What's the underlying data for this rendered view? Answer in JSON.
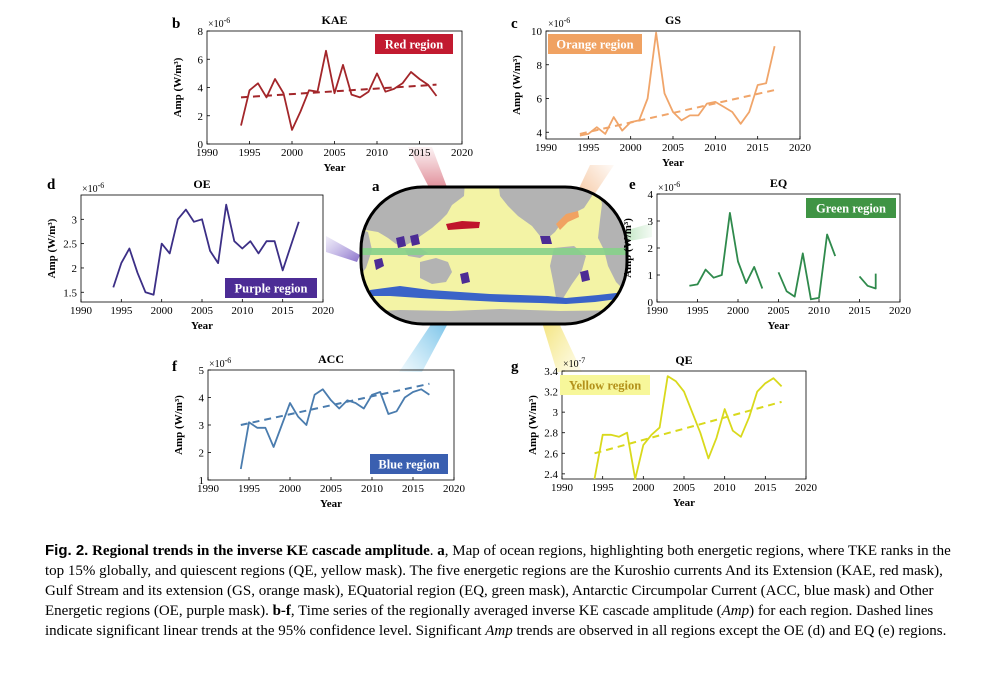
{
  "map": {
    "letter": "a",
    "colors": {
      "ocean": "#f3f3a5",
      "land": "#b3b3b3",
      "frame": "#000000",
      "KAE": "#c0142b",
      "GS": "#f0a262",
      "EQ": "#86d08a",
      "ACC": "#3a63c8",
      "OE": "#4c2c95"
    }
  },
  "caption": {
    "figlabel": "Fig. 2.",
    "title": "Regional trends in the inverse KE cascade amplitude",
    "a_label": "a",
    "a_text": ", Map of ocean regions, highlighting both energetic regions, where TKE ranks in the top 15% globally, and quiescent regions (QE, yellow mask). The five energetic regions are the Kuroshio currents And its Extension (KAE, red mask), Gulf Stream and its extension (GS, orange mask), EQuatorial region (EQ, green mask), Antarctic Circumpolar Current (ACC, blue mask) and Other Energetic regions (OE, purple mask).",
    "bf_label": "b-f",
    "bf_text1": ", Time series of the regionally averaged inverse KE cascade amplitude (",
    "amp": "Amp",
    "bf_text2": ") for each region. Dashed lines indicate significant linear trends at the 95% confidence level. Significant",
    "amp2": "Amp",
    "bf_text3": "trends are observed in all regions except the OE (d) and EQ (e) regions."
  },
  "chart_data": [
    {
      "type": "line",
      "letter": "b",
      "title": "KAE",
      "badge": "Red region",
      "color": "#a3262a",
      "badge_color": "#c21a30",
      "badge_text_color": "#ffffff",
      "exponent_base": "×10",
      "exponent_power": "-6",
      "xlabel": "Year",
      "ylabel": "Amp (W/m³)",
      "xlim": [
        1990,
        2020
      ],
      "ylim": [
        0,
        8
      ],
      "xticks": [
        1990,
        1995,
        2000,
        2005,
        2010,
        2015,
        2020
      ],
      "xtick_labels": [
        "1990",
        "1995",
        "2000",
        "2005",
        "2010",
        "2015",
        "2020"
      ],
      "yticks": [
        0,
        2,
        4,
        6,
        8
      ],
      "ytick_labels": [
        "0",
        "2",
        "4",
        "6",
        "8"
      ],
      "x": [
        1994,
        1995,
        1996,
        1997,
        1998,
        1999,
        2000,
        2001,
        2002,
        2003,
        2004,
        2005,
        2006,
        2007,
        2008,
        2009,
        2010,
        2011,
        2012,
        2013,
        2014,
        2015,
        2016,
        2017
      ],
      "values": [
        1.3,
        3.8,
        4.3,
        3.3,
        4.6,
        3.6,
        1.0,
        2.3,
        3.8,
        3.7,
        6.6,
        3.6,
        5.6,
        3.5,
        3.3,
        3.7,
        5.0,
        3.7,
        3.9,
        4.3,
        5.1,
        4.6,
        4.2,
        3.4
      ],
      "trend": {
        "x": [
          1994,
          2017
        ],
        "y": [
          3.3,
          4.2
        ]
      }
    },
    {
      "type": "line",
      "letter": "c",
      "title": "GS",
      "badge": "Orange region",
      "color": "#f0a56a",
      "badge_color": "#f0a262",
      "badge_text_color": "#ffffff",
      "exponent_base": "×10",
      "exponent_power": "-6",
      "xlabel": "Year",
      "ylabel": "Amp (W/m³)",
      "xlim": [
        1990,
        2020
      ],
      "ylim": [
        3.6,
        10
      ],
      "xticks": [
        1990,
        1995,
        2000,
        2005,
        2010,
        2015,
        2020
      ],
      "xtick_labels": [
        "1990",
        "1995",
        "2000",
        "2005",
        "2010",
        "2015",
        "2020"
      ],
      "yticks": [
        4,
        6,
        8,
        10
      ],
      "ytick_labels": [
        "4",
        "6",
        "8",
        "10"
      ],
      "x": [
        1994,
        1995,
        1996,
        1997,
        1998,
        1999,
        2000,
        2001,
        2002,
        2003,
        2004,
        2005,
        2006,
        2007,
        2008,
        2009,
        2010,
        2011,
        2012,
        2013,
        2014,
        2015,
        2016,
        2017
      ],
      "values": [
        3.8,
        3.9,
        4.3,
        3.9,
        4.9,
        4.1,
        4.6,
        4.7,
        6.0,
        9.9,
        6.3,
        5.2,
        4.7,
        5.0,
        5.0,
        5.7,
        5.8,
        5.5,
        5.2,
        4.5,
        5.2,
        6.8,
        6.9,
        9.1
      ],
      "trend": {
        "x": [
          1994,
          2017
        ],
        "y": [
          3.9,
          6.5
        ]
      }
    },
    {
      "type": "line",
      "letter": "d",
      "title": "OE",
      "badge": "Purple region",
      "color": "#3c2f86",
      "badge_color": "#4c2c95",
      "badge_text_color": "#ffffff",
      "exponent_base": "×10",
      "exponent_power": "-6",
      "xlabel": "Year",
      "ylabel": "Amp (W/m³)",
      "xlim": [
        1990,
        2020
      ],
      "ylim": [
        1.3,
        3.5
      ],
      "xticks": [
        1990,
        1995,
        2000,
        2005,
        2010,
        2015,
        2020
      ],
      "xtick_labels": [
        "1990",
        "1995",
        "2000",
        "2005",
        "2010",
        "2015",
        "2020"
      ],
      "yticks": [
        1.5,
        2,
        2.5,
        3
      ],
      "ytick_labels": [
        "1.5",
        "2",
        "2.5",
        "3"
      ],
      "x": [
        1994,
        1995,
        1996,
        1997,
        1998,
        1999,
        2000,
        2001,
        2002,
        2003,
        2004,
        2005,
        2006,
        2007,
        2008,
        2009,
        2010,
        2011,
        2012,
        2013,
        2014,
        2015,
        2016,
        2017
      ],
      "values": [
        1.6,
        2.1,
        2.4,
        1.9,
        1.5,
        1.45,
        2.5,
        2.3,
        3.0,
        3.2,
        2.95,
        3.0,
        2.35,
        2.1,
        3.3,
        2.55,
        2.4,
        2.55,
        2.3,
        2.55,
        2.55,
        1.95,
        2.45,
        2.95
      ],
      "trend": null
    },
    {
      "type": "line",
      "letter": "e",
      "title": "EQ",
      "badge": "Green region",
      "color": "#2f8a4c",
      "badge_color": "#3f9444",
      "badge_text_color": "#ffffff",
      "exponent_base": "×10",
      "exponent_power": "-6",
      "xlabel": "Year",
      "ylabel": "Amp (W/m³)",
      "xlim": [
        1990,
        2020
      ],
      "ylim": [
        0,
        4
      ],
      "xticks": [
        1990,
        1995,
        2000,
        2005,
        2010,
        2015,
        2020
      ],
      "xtick_labels": [
        "1990",
        "1995",
        "2000",
        "2005",
        "2010",
        "2015",
        "2020"
      ],
      "yticks": [
        0,
        1,
        2,
        3,
        4
      ],
      "ytick_labels": [
        "0",
        "1",
        "2",
        "3",
        "4"
      ],
      "x": [
        1994,
        1995,
        1996,
        1997,
        1998,
        1999,
        2000,
        2001,
        2002,
        2003,
        2004,
        2005,
        2006,
        2007,
        2008,
        2009,
        2010,
        2011,
        2012,
        2013,
        2014,
        2015,
        2016,
        2017
      ],
      "values": [
        0.6,
        0.65,
        1.2,
        0.9,
        1.0,
        3.3,
        1.5,
        0.7,
        1.3,
        0.5,
        null,
        1.1,
        0.4,
        0.2,
        1.8,
        0.1,
        0.15,
        2.5,
        1.7,
        null,
        null,
        0.95,
        0.6,
        0.5
      ],
      "extra_points": [
        [
          2017,
          1.05
        ]
      ],
      "trend": null
    },
    {
      "type": "line",
      "letter": "f",
      "title": "ACC",
      "badge": "Blue region",
      "color": "#4a7cae",
      "badge_color": "#3a5fb0",
      "badge_text_color": "#ffffff",
      "exponent_base": "×10",
      "exponent_power": "-6",
      "xlabel": "Year",
      "ylabel": "Amp (W/m³)",
      "xlim": [
        1990,
        2020
      ],
      "ylim": [
        1,
        5
      ],
      "xticks": [
        1990,
        1995,
        2000,
        2005,
        2010,
        2015,
        2020
      ],
      "xtick_labels": [
        "1990",
        "1995",
        "2000",
        "2005",
        "2010",
        "2015",
        "2020"
      ],
      "yticks": [
        1,
        2,
        3,
        4,
        5
      ],
      "ytick_labels": [
        "1",
        "2",
        "3",
        "4",
        "5"
      ],
      "x": [
        1994,
        1995,
        1996,
        1997,
        1998,
        1999,
        2000,
        2001,
        2002,
        2003,
        2004,
        2005,
        2006,
        2007,
        2008,
        2009,
        2010,
        2011,
        2012,
        2013,
        2014,
        2015,
        2016,
        2017
      ],
      "values": [
        1.4,
        3.1,
        2.9,
        2.9,
        2.2,
        3.0,
        3.8,
        3.3,
        3.0,
        4.1,
        4.3,
        3.9,
        3.6,
        3.9,
        3.8,
        3.6,
        4.1,
        4.2,
        3.4,
        3.5,
        4.0,
        4.2,
        4.3,
        4.1
      ],
      "trend": {
        "x": [
          1994,
          2017
        ],
        "y": [
          3.0,
          4.5
        ]
      }
    },
    {
      "type": "line",
      "letter": "g",
      "title": "QE",
      "badge": "Yellow region",
      "color": "#d9d91c",
      "badge_color": "#f7f79a",
      "badge_text_color": "#b3911a",
      "exponent_base": "×10",
      "exponent_power": "-7",
      "xlabel": "Year",
      "ylabel": "Amp (W/m³)",
      "xlim": [
        1990,
        2020
      ],
      "ylim": [
        2.35,
        3.4
      ],
      "xticks": [
        1990,
        1995,
        2000,
        2005,
        2010,
        2015,
        2020
      ],
      "xtick_labels": [
        "1990",
        "1995",
        "2000",
        "2005",
        "2010",
        "2015",
        "2020"
      ],
      "yticks": [
        2.4,
        2.6,
        2.8,
        3,
        3.2,
        3.4
      ],
      "ytick_labels": [
        "2.4",
        "2.6",
        "2.8",
        "3",
        "3.2",
        "3.4"
      ],
      "x": [
        1994,
        1995,
        1996,
        1997,
        1998,
        1999,
        2000,
        2001,
        2002,
        2003,
        2004,
        2005,
        2006,
        2007,
        2008,
        2009,
        2010,
        2011,
        2012,
        2013,
        2014,
        2015,
        2016,
        2017
      ],
      "values": [
        2.35,
        2.78,
        2.78,
        2.76,
        2.8,
        2.35,
        2.68,
        2.78,
        2.85,
        3.35,
        3.3,
        3.2,
        3.0,
        2.8,
        2.55,
        2.75,
        3.03,
        2.82,
        2.76,
        2.95,
        3.2,
        3.28,
        3.33,
        3.25
      ],
      "trend": {
        "x": [
          1994,
          2017
        ],
        "y": [
          2.6,
          3.1
        ]
      }
    }
  ]
}
